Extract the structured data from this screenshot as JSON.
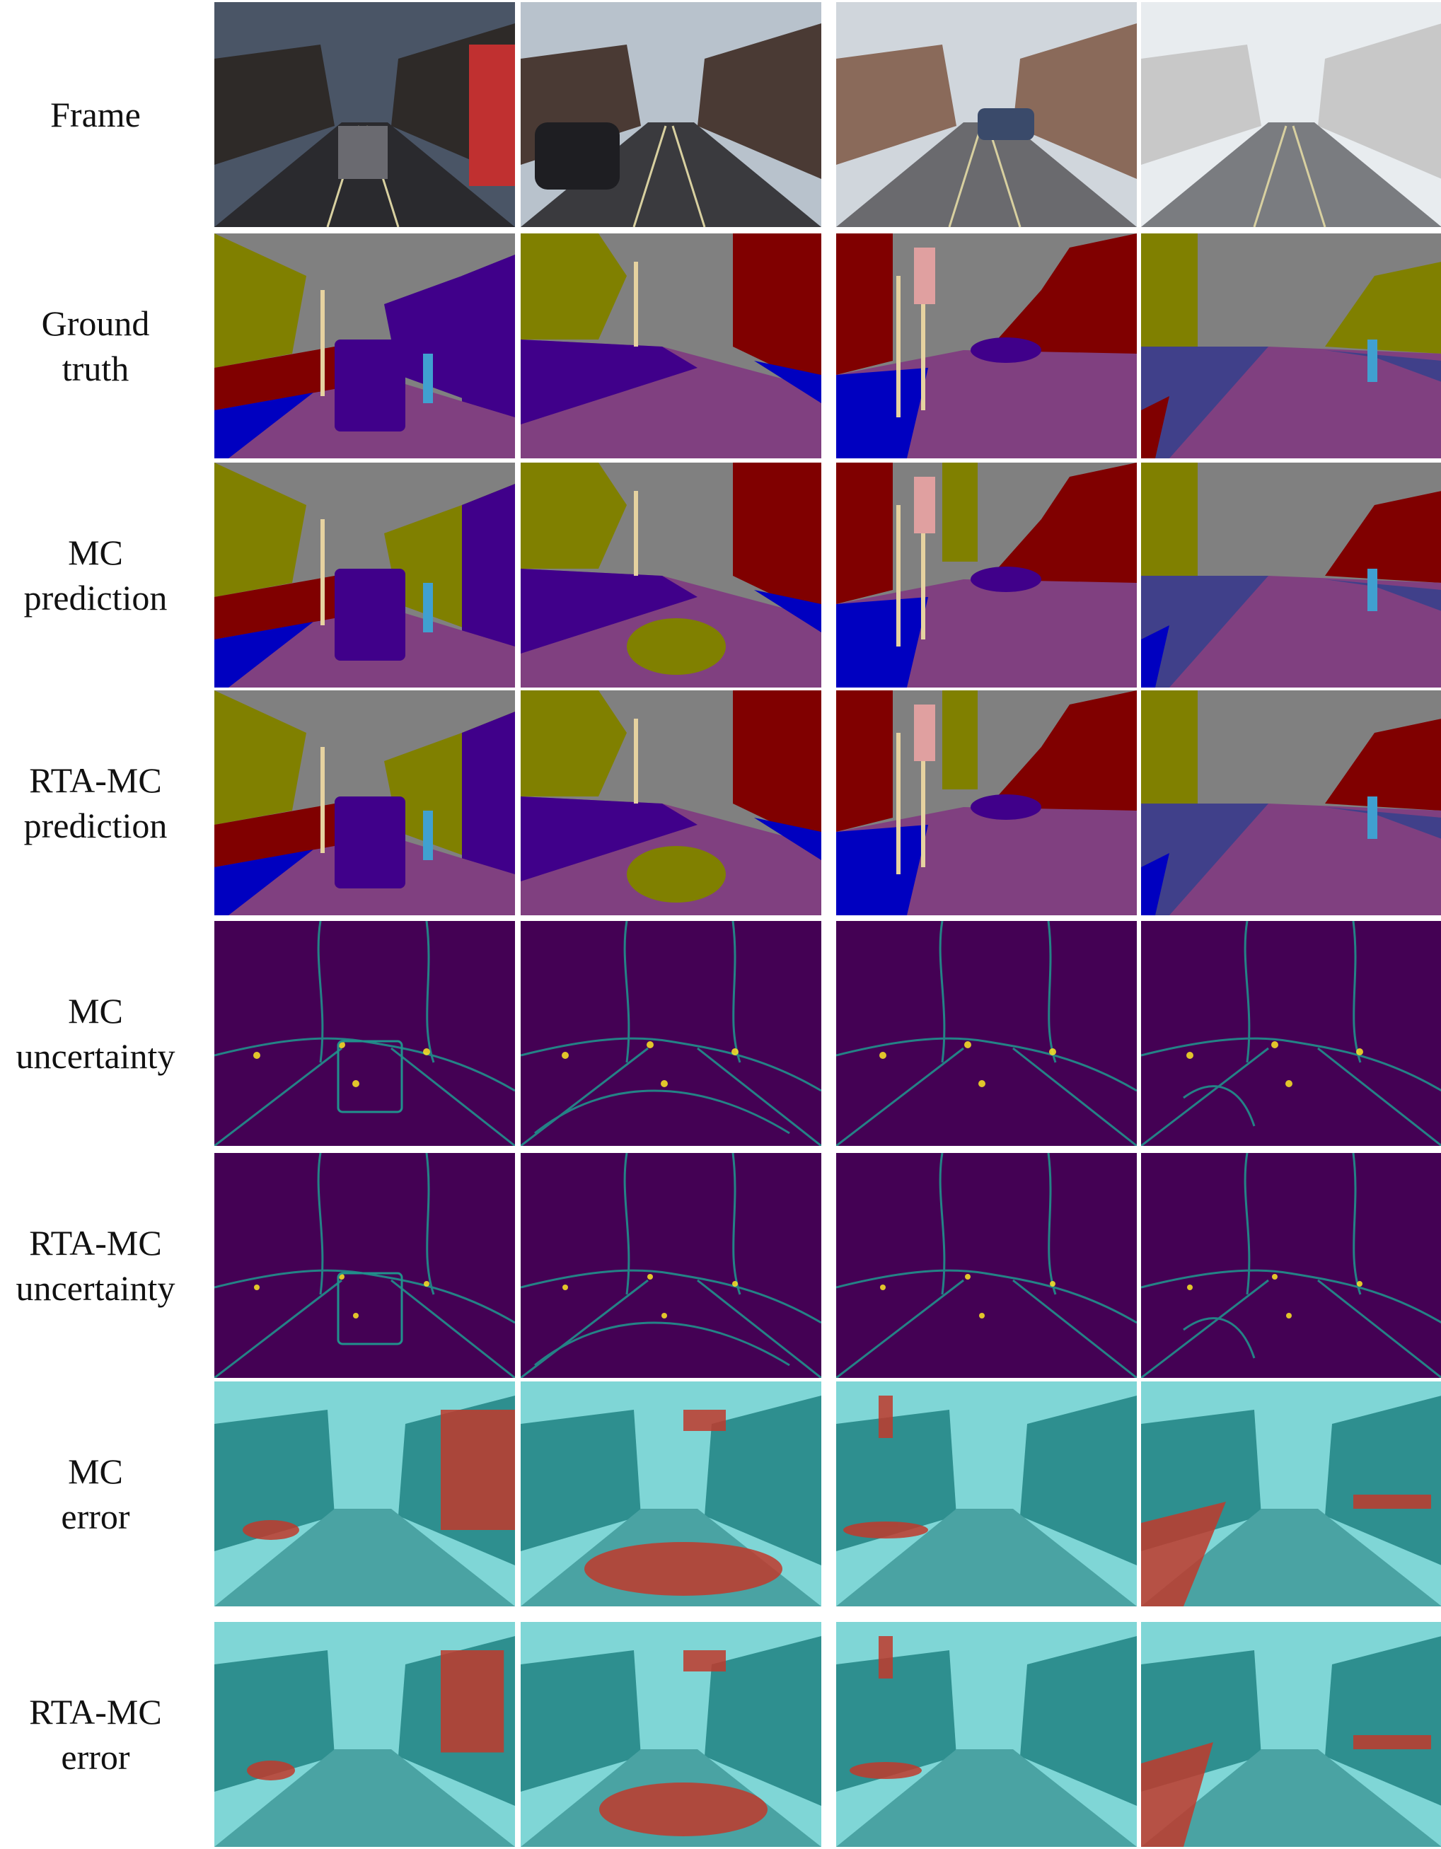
{
  "figure": {
    "row_labels": [
      "Frame",
      "Ground\ntruth",
      "MC\nprediction",
      "RTA-MC\nprediction",
      "MC\nuncertainty",
      "RTA-MC\nuncertainty",
      "MC\nerror",
      "RTA-MC\nerror"
    ],
    "row_kinds": [
      "frame",
      "segmentation",
      "segmentation",
      "segmentation",
      "uncertainty",
      "uncertainty",
      "error",
      "error"
    ],
    "columns": 4,
    "colors": {
      "sky": "#808080",
      "building": "#800000",
      "tree": "#808000",
      "road": "#804080",
      "sidewalk": "#0000c0",
      "car": "#40008a",
      "pole": "#e6d2a0",
      "pedestrian": "#40a0d0",
      "fence": "#40408a",
      "sign": "#e0a0a0",
      "uncertainty_low": "#440154",
      "uncertainty_mid": "#21918c",
      "uncertainty_high": "#fde725",
      "error_base": "#2e8f8f",
      "error_sky": "#7fd6d6",
      "error_highlight": "#c0392b"
    }
  }
}
